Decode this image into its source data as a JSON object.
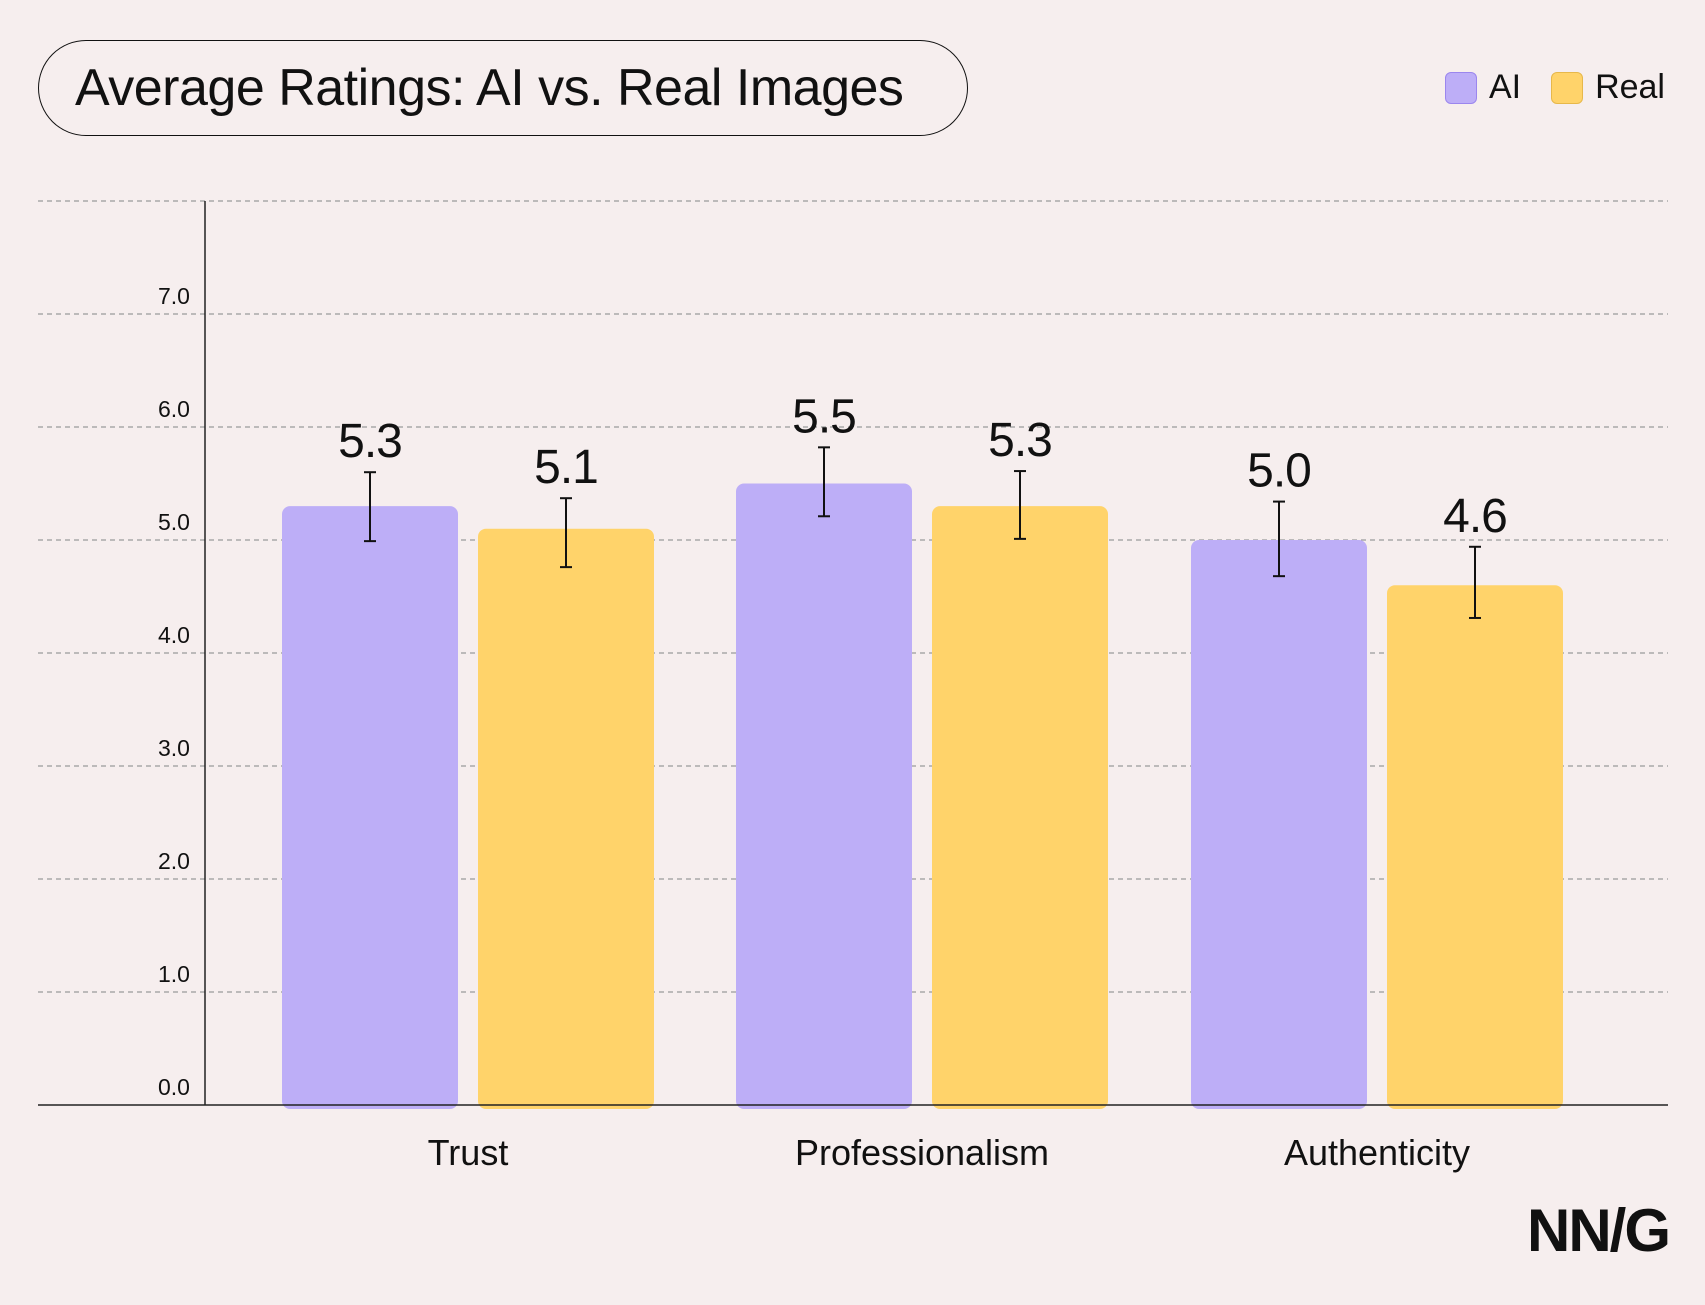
{
  "title": "Average Ratings: AI vs. Real Images",
  "legend": {
    "ai_label": "AI",
    "real_label": "Real"
  },
  "logo": "NN/G",
  "colors": {
    "ai": "#bdaef7",
    "real": "#ffd36a",
    "background": "#f6eeee",
    "text": "#111111"
  },
  "chart_data": {
    "type": "bar",
    "title": "Average Ratings: AI vs. Real Images",
    "xlabel": "",
    "ylabel": "",
    "ylim": [
      0,
      8
    ],
    "yticks": [
      "0.0",
      "1.0",
      "2.0",
      "3.0",
      "4.0",
      "5.0",
      "6.0",
      "7.0"
    ],
    "grid": true,
    "legend_position": "top-right",
    "categories": [
      "Trust",
      "Professionalism",
      "Authenticity"
    ],
    "series": [
      {
        "name": "AI",
        "values": [
          5.3,
          5.5,
          5.0
        ],
        "labels": [
          "5.3",
          "5.5",
          "5.0"
        ],
        "error_low": [
          4.99,
          5.21,
          4.68
        ],
        "error_high": [
          5.6,
          5.82,
          5.34
        ]
      },
      {
        "name": "Real",
        "values": [
          5.1,
          5.3,
          4.6
        ],
        "labels": [
          "5.1",
          "5.3",
          "4.6"
        ],
        "error_low": [
          4.76,
          5.01,
          4.31
        ],
        "error_high": [
          5.37,
          5.61,
          4.94
        ]
      }
    ]
  }
}
